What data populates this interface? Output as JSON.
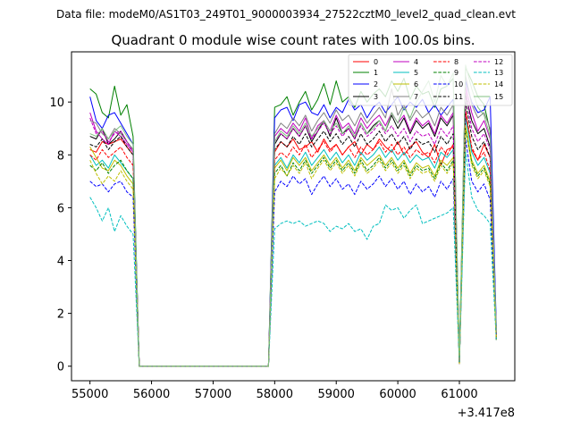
{
  "header": {
    "datafile": "Data file: modeM0/AS1T03_249T01_9000003934_27522cztM0_level2_quad_clean.evt",
    "title": "Quadrant 0 module wise count rates with 100.0s bins."
  },
  "chart_data": {
    "type": "line",
    "title": "Quadrant 0 module wise count rates with 100.0s bins.",
    "xlabel": "",
    "ylabel": "",
    "offset_label": "+3.417e8",
    "x_offset": 341700000,
    "xlim": [
      54700,
      61900
    ],
    "ylim": [
      -0.55,
      11.9
    ],
    "xticks": [
      55000,
      56000,
      57000,
      58000,
      59000,
      60000,
      61000
    ],
    "xtick_labels": [
      "55000",
      "56000",
      "57000",
      "58000",
      "59000",
      "60000",
      "61000"
    ],
    "yticks": [
      0,
      2,
      4,
      6,
      8,
      10
    ],
    "ytick_labels": [
      "0",
      "2",
      "4",
      "6",
      "8",
      "10"
    ],
    "legend_position": "top-right",
    "gap_x": [
      55800,
      55900,
      57900
    ],
    "active_x_a": [
      55000,
      55100,
      55200,
      55300,
      55400,
      55500,
      55600,
      55700
    ],
    "active_x_b": [
      58000,
      58100,
      58200,
      58300,
      58400,
      58500,
      58600,
      58700,
      58800,
      58900,
      59000,
      59100,
      59200,
      59300,
      59400,
      59500,
      59600,
      59700,
      59800,
      59900,
      60000,
      60100,
      60200,
      60300,
      60400,
      60500,
      60600,
      60700,
      60800
    ],
    "active_x_c": [
      60900,
      61000,
      61100,
      61200,
      61300,
      61400,
      61500,
      61600
    ],
    "series": [
      {
        "name": "0",
        "color": "#ff0000",
        "dash": false,
        "a": [
          8.2,
          8.1,
          8.5,
          8.4,
          8.5,
          8.6,
          8.3,
          8.0
        ],
        "b": [
          8.1,
          8.5,
          8.3,
          8.6,
          8.2,
          8.3,
          8.5,
          8.1,
          8.6,
          8.2,
          8.4,
          8.0,
          8.3,
          8.5,
          8.0,
          8.4,
          8.2,
          8.6,
          8.3,
          8.1,
          8.5,
          8.0,
          8.3,
          8.5,
          8.1,
          7.9,
          8.4,
          7.6,
          8.2
        ],
        "c": [
          8.3,
          0.1,
          9.6,
          8.2,
          7.8,
          8.4,
          7.9,
          1.3
        ]
      },
      {
        "name": "1",
        "color": "#008000",
        "dash": false,
        "a": [
          10.5,
          10.3,
          9.6,
          9.4,
          10.6,
          9.5,
          9.9,
          8.7
        ],
        "b": [
          9.8,
          9.9,
          10.2,
          9.5,
          10.0,
          10.4,
          9.7,
          10.1,
          10.7,
          9.9,
          10.8,
          10.0,
          10.2,
          9.8,
          10.4,
          10.0,
          10.3,
          10.5,
          10.2,
          10.8,
          10.4,
          10.9,
          10.1,
          10.6,
          10.3,
          10.4,
          9.8,
          10.5,
          10.6
        ],
        "c": [
          10.9,
          0.3,
          11.3,
          10.8,
          10.2,
          9.9,
          8.9,
          1.4
        ]
      },
      {
        "name": "2",
        "color": "#0000ff",
        "dash": false,
        "a": [
          10.2,
          9.3,
          9.0,
          9.5,
          9.6,
          9.2,
          8.8,
          8.4
        ],
        "b": [
          9.4,
          9.7,
          9.8,
          9.3,
          9.9,
          10.0,
          9.6,
          9.5,
          9.9,
          9.4,
          9.8,
          9.6,
          10.1,
          9.7,
          9.9,
          9.4,
          9.8,
          10.0,
          9.6,
          9.9,
          10.2,
          9.7,
          10.0,
          9.8,
          10.1,
          9.6,
          9.9,
          9.5,
          9.8
        ],
        "c": [
          10.1,
          0.2,
          10.8,
          10.0,
          9.6,
          9.7,
          10.2,
          1.5
        ]
      },
      {
        "name": "3",
        "color": "#000000",
        "dash": false,
        "a": [
          8.7,
          8.6,
          9.0,
          8.4,
          8.6,
          8.9,
          8.5,
          8.2
        ],
        "b": [
          8.4,
          8.8,
          8.6,
          9.0,
          8.7,
          9.1,
          8.5,
          8.9,
          9.3,
          8.7,
          9.4,
          8.8,
          9.0,
          8.6,
          9.2,
          8.8,
          9.1,
          9.3,
          8.9,
          9.5,
          9.0,
          9.4,
          8.8,
          9.3,
          9.0,
          9.2,
          8.7,
          9.4,
          9.1
        ],
        "c": [
          9.5,
          0.1,
          10.3,
          9.3,
          8.8,
          9.0,
          8.3,
          1.2
        ]
      },
      {
        "name": "4",
        "color": "#bf00bf",
        "dash": false,
        "a": [
          9.6,
          8.9,
          8.6,
          8.4,
          8.9,
          8.7,
          8.4,
          8.1
        ],
        "b": [
          8.7,
          9.0,
          8.8,
          9.2,
          8.9,
          9.4,
          8.6,
          9.1,
          9.3,
          8.9,
          9.5,
          9.0,
          9.2,
          8.8,
          9.4,
          9.0,
          9.3,
          9.5,
          9.1,
          9.6,
          9.2,
          9.5,
          8.9,
          9.4,
          9.1,
          9.3,
          8.8,
          9.5,
          9.2
        ],
        "c": [
          9.6,
          0.1,
          10.6,
          9.6,
          8.9,
          9.3,
          8.6,
          1.3
        ]
      },
      {
        "name": "5",
        "color": "#00bfbf",
        "dash": false,
        "a": [
          8.0,
          7.6,
          7.8,
          7.5,
          8.0,
          7.7,
          7.4,
          7.1
        ],
        "b": [
          7.6,
          7.9,
          7.5,
          8.0,
          7.7,
          8.1,
          7.6,
          7.9,
          8.2,
          7.8,
          8.1,
          7.7,
          8.0,
          7.6,
          8.1,
          7.8,
          8.0,
          8.3,
          7.9,
          8.2,
          7.8,
          8.1,
          7.7,
          8.0,
          7.8,
          7.9,
          7.5,
          8.1,
          7.9
        ],
        "c": [
          8.2,
          0.1,
          9.4,
          8.1,
          7.6,
          7.9,
          7.3,
          1.1
        ]
      },
      {
        "name": "6",
        "color": "#bfbf00",
        "dash": false,
        "a": [
          8.3,
          7.9,
          7.5,
          7.4,
          7.8,
          7.6,
          7.2,
          6.9
        ],
        "b": [
          7.5,
          7.8,
          7.4,
          7.9,
          7.6,
          7.9,
          7.4,
          7.7,
          8.0,
          7.6,
          7.9,
          7.5,
          7.8,
          7.4,
          7.9,
          7.6,
          7.8,
          8.0,
          7.6,
          7.9,
          7.5,
          7.8,
          7.3,
          7.7,
          7.5,
          7.6,
          7.2,
          7.8,
          7.6
        ],
        "c": [
          7.9,
          0.1,
          9.1,
          7.8,
          7.3,
          7.6,
          7.0,
          1.0
        ]
      },
      {
        "name": "7",
        "color": "#808080",
        "dash": false,
        "a": [
          9.3,
          9.2,
          8.8,
          8.6,
          9.0,
          8.8,
          8.5,
          8.2
        ],
        "b": [
          8.8,
          9.2,
          9.0,
          9.4,
          9.1,
          9.5,
          8.9,
          9.3,
          9.6,
          9.2,
          9.7,
          9.3,
          9.5,
          9.1,
          9.6,
          9.2,
          9.5,
          9.8,
          9.4,
          10.5,
          9.5,
          9.9,
          9.3,
          9.7,
          9.4,
          9.6,
          9.1,
          9.8,
          9.5
        ],
        "c": [
          9.9,
          0.1,
          11.0,
          9.9,
          9.4,
          9.6,
          9.0,
          1.2
        ]
      },
      {
        "name": "8",
        "color": "#ff0000",
        "dash": true,
        "a": [
          8.0,
          7.8,
          8.2,
          7.9,
          8.1,
          8.3,
          7.9,
          7.6
        ],
        "b": [
          7.8,
          8.1,
          7.9,
          8.3,
          8.0,
          8.4,
          7.9,
          8.2,
          8.5,
          8.1,
          8.4,
          8.0,
          8.3,
          7.9,
          8.3,
          8.0,
          8.2,
          8.5,
          8.1,
          8.4,
          8.0,
          8.3,
          7.9,
          8.2,
          8.0,
          8.1,
          7.7,
          8.3,
          8.0
        ],
        "c": [
          8.4,
          0.1,
          9.7,
          8.3,
          7.8,
          8.1,
          7.4,
          1.1
        ]
      },
      {
        "name": "9",
        "color": "#008000",
        "dash": true,
        "a": [
          7.6,
          7.4,
          7.7,
          7.3,
          7.6,
          7.8,
          7.4,
          7.1
        ],
        "b": [
          7.3,
          7.6,
          7.2,
          7.7,
          7.4,
          7.8,
          7.3,
          7.6,
          7.9,
          7.5,
          7.8,
          7.4,
          7.7,
          7.3,
          7.8,
          7.4,
          7.6,
          7.9,
          7.5,
          7.8,
          7.4,
          7.7,
          7.2,
          7.6,
          7.4,
          7.5,
          7.1,
          7.7,
          7.4
        ],
        "c": [
          7.8,
          0.1,
          9.0,
          7.7,
          7.2,
          7.5,
          6.9,
          1.0
        ]
      },
      {
        "name": "10",
        "color": "#0000ff",
        "dash": true,
        "a": [
          7.0,
          6.8,
          6.9,
          6.6,
          6.9,
          7.0,
          6.6,
          6.4
        ],
        "b": [
          6.6,
          7.0,
          6.8,
          7.2,
          6.9,
          7.1,
          6.5,
          6.9,
          7.2,
          6.8,
          7.1,
          6.7,
          6.9,
          6.5,
          7.0,
          6.7,
          6.9,
          7.2,
          6.8,
          7.1,
          6.7,
          7.0,
          6.5,
          6.9,
          6.6,
          6.8,
          6.4,
          7.0,
          6.7
        ],
        "c": [
          7.1,
          0.1,
          8.6,
          7.0,
          6.6,
          6.9,
          6.3,
          1.0
        ]
      },
      {
        "name": "11",
        "color": "#000000",
        "dash": true,
        "a": [
          8.4,
          8.3,
          8.6,
          8.2,
          8.5,
          8.7,
          8.3,
          8.0
        ],
        "b": [
          8.2,
          8.5,
          8.3,
          8.7,
          8.4,
          8.8,
          8.3,
          8.6,
          8.9,
          8.5,
          8.8,
          8.4,
          8.7,
          8.3,
          8.8,
          8.4,
          8.6,
          8.9,
          8.5,
          8.8,
          8.4,
          8.7,
          8.2,
          8.6,
          8.4,
          8.5,
          8.1,
          8.7,
          8.4
        ],
        "c": [
          8.8,
          0.1,
          10.0,
          8.7,
          8.2,
          8.5,
          7.9,
          1.1
        ]
      },
      {
        "name": "12",
        "color": "#bf00bf",
        "dash": true,
        "a": [
          9.4,
          8.8,
          8.9,
          8.5,
          8.8,
          8.9,
          8.5,
          8.1
        ],
        "b": [
          8.5,
          8.8,
          8.6,
          9.0,
          8.7,
          9.1,
          8.6,
          8.9,
          9.2,
          8.8,
          9.1,
          8.7,
          9.0,
          8.6,
          9.1,
          8.7,
          8.9,
          9.2,
          8.8,
          9.1,
          8.7,
          9.0,
          8.5,
          8.9,
          8.7,
          8.8,
          8.4,
          9.0,
          8.7
        ],
        "c": [
          9.1,
          0.1,
          10.4,
          9.0,
          8.5,
          8.8,
          8.2,
          1.2
        ]
      },
      {
        "name": "13",
        "color": "#00bfbf",
        "dash": true,
        "a": [
          6.4,
          6.0,
          5.5,
          6.0,
          5.1,
          5.7,
          5.3,
          5.0
        ],
        "b": [
          5.2,
          5.4,
          5.5,
          5.4,
          5.5,
          5.3,
          5.4,
          5.5,
          5.4,
          5.1,
          5.3,
          5.2,
          5.4,
          5.1,
          5.2,
          4.8,
          5.3,
          5.4,
          6.1,
          5.9,
          6.0,
          5.6,
          5.9,
          6.1,
          5.4,
          5.5,
          5.6,
          5.7,
          5.8
        ],
        "c": [
          6.0,
          0.1,
          8.1,
          6.4,
          5.9,
          5.7,
          5.4,
          1.0
        ]
      },
      {
        "name": "14",
        "color": "#bfbf00",
        "dash": true,
        "a": [
          7.8,
          7.3,
          6.9,
          7.2,
          7.0,
          7.4,
          7.0,
          6.7
        ],
        "b": [
          7.1,
          7.5,
          7.2,
          7.6,
          7.3,
          7.7,
          7.1,
          7.5,
          7.8,
          7.4,
          7.7,
          7.3,
          7.6,
          7.2,
          7.7,
          7.3,
          7.5,
          7.8,
          7.4,
          7.7,
          7.3,
          7.6,
          7.1,
          7.5,
          7.3,
          7.4,
          7.0,
          7.6,
          7.3
        ],
        "c": [
          7.7,
          0.1,
          9.1,
          7.6,
          7.1,
          7.4,
          6.8,
          1.0
        ]
      },
      {
        "name": "15",
        "color": "#80c080",
        "dash": false,
        "a": [
          8.8,
          8.7,
          9.0,
          8.6,
          8.9,
          9.1,
          8.7,
          8.4
        ],
        "b": [
          8.5,
          8.9,
          8.7,
          9.1,
          8.8,
          9.2,
          8.7,
          9.0,
          9.3,
          8.9,
          9.2,
          8.8,
          9.1,
          8.7,
          9.2,
          8.8,
          9.0,
          9.3,
          8.9,
          9.6,
          9.2,
          9.8,
          9.4,
          10.0,
          10.4,
          10.8,
          10.0,
          11.0,
          10.6
        ],
        "c": [
          11.1,
          0.2,
          11.4,
          10.5,
          9.8,
          9.5,
          8.7,
          1.3
        ]
      }
    ]
  }
}
